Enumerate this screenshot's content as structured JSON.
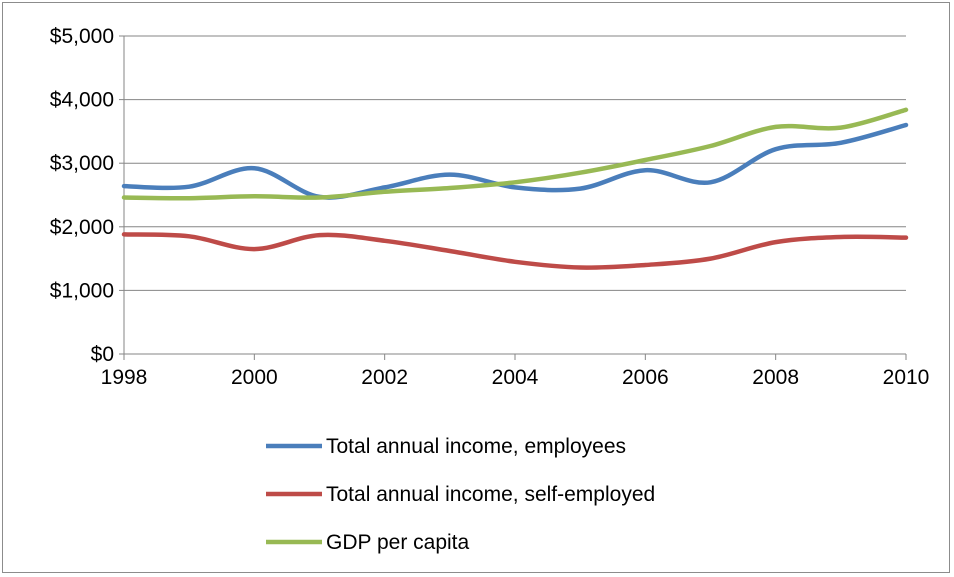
{
  "chart_data": {
    "type": "line",
    "title": "",
    "xlabel": "",
    "ylabel": "",
    "x": [
      1998,
      1999,
      2000,
      2001,
      2002,
      2003,
      2004,
      2005,
      2006,
      2007,
      2008,
      2009,
      2010
    ],
    "xticks": [
      1998,
      2000,
      2002,
      2004,
      2006,
      2008,
      2010
    ],
    "xtick_labels": [
      "1998",
      "2000",
      "2002",
      "2004",
      "2006",
      "2008",
      "2010"
    ],
    "xlim": [
      1998,
      2010
    ],
    "ylim": [
      0,
      5000
    ],
    "yticks": [
      0,
      1000,
      2000,
      3000,
      4000,
      5000
    ],
    "ytick_labels": [
      "$0",
      "$1,000",
      "$2,000",
      "$3,000",
      "$4,000",
      "$5,000"
    ],
    "grid": true,
    "smooth": true,
    "legend_position": "bottom",
    "series": [
      {
        "name": "Total annual income, employees",
        "color": "#4a7ebb",
        "values": [
          2640,
          2630,
          2920,
          2470,
          2620,
          2820,
          2620,
          2600,
          2890,
          2700,
          3220,
          3320,
          3600
        ]
      },
      {
        "name": "Total annual income, self-employed",
        "color": "#be4b48",
        "values": [
          1880,
          1850,
          1650,
          1870,
          1780,
          1620,
          1450,
          1360,
          1400,
          1500,
          1760,
          1840,
          1830
        ]
      },
      {
        "name": "GDP per capita",
        "color": "#98b954",
        "values": [
          2460,
          2450,
          2480,
          2460,
          2550,
          2610,
          2700,
          2850,
          3050,
          3270,
          3570,
          3560,
          3840
        ]
      }
    ]
  }
}
